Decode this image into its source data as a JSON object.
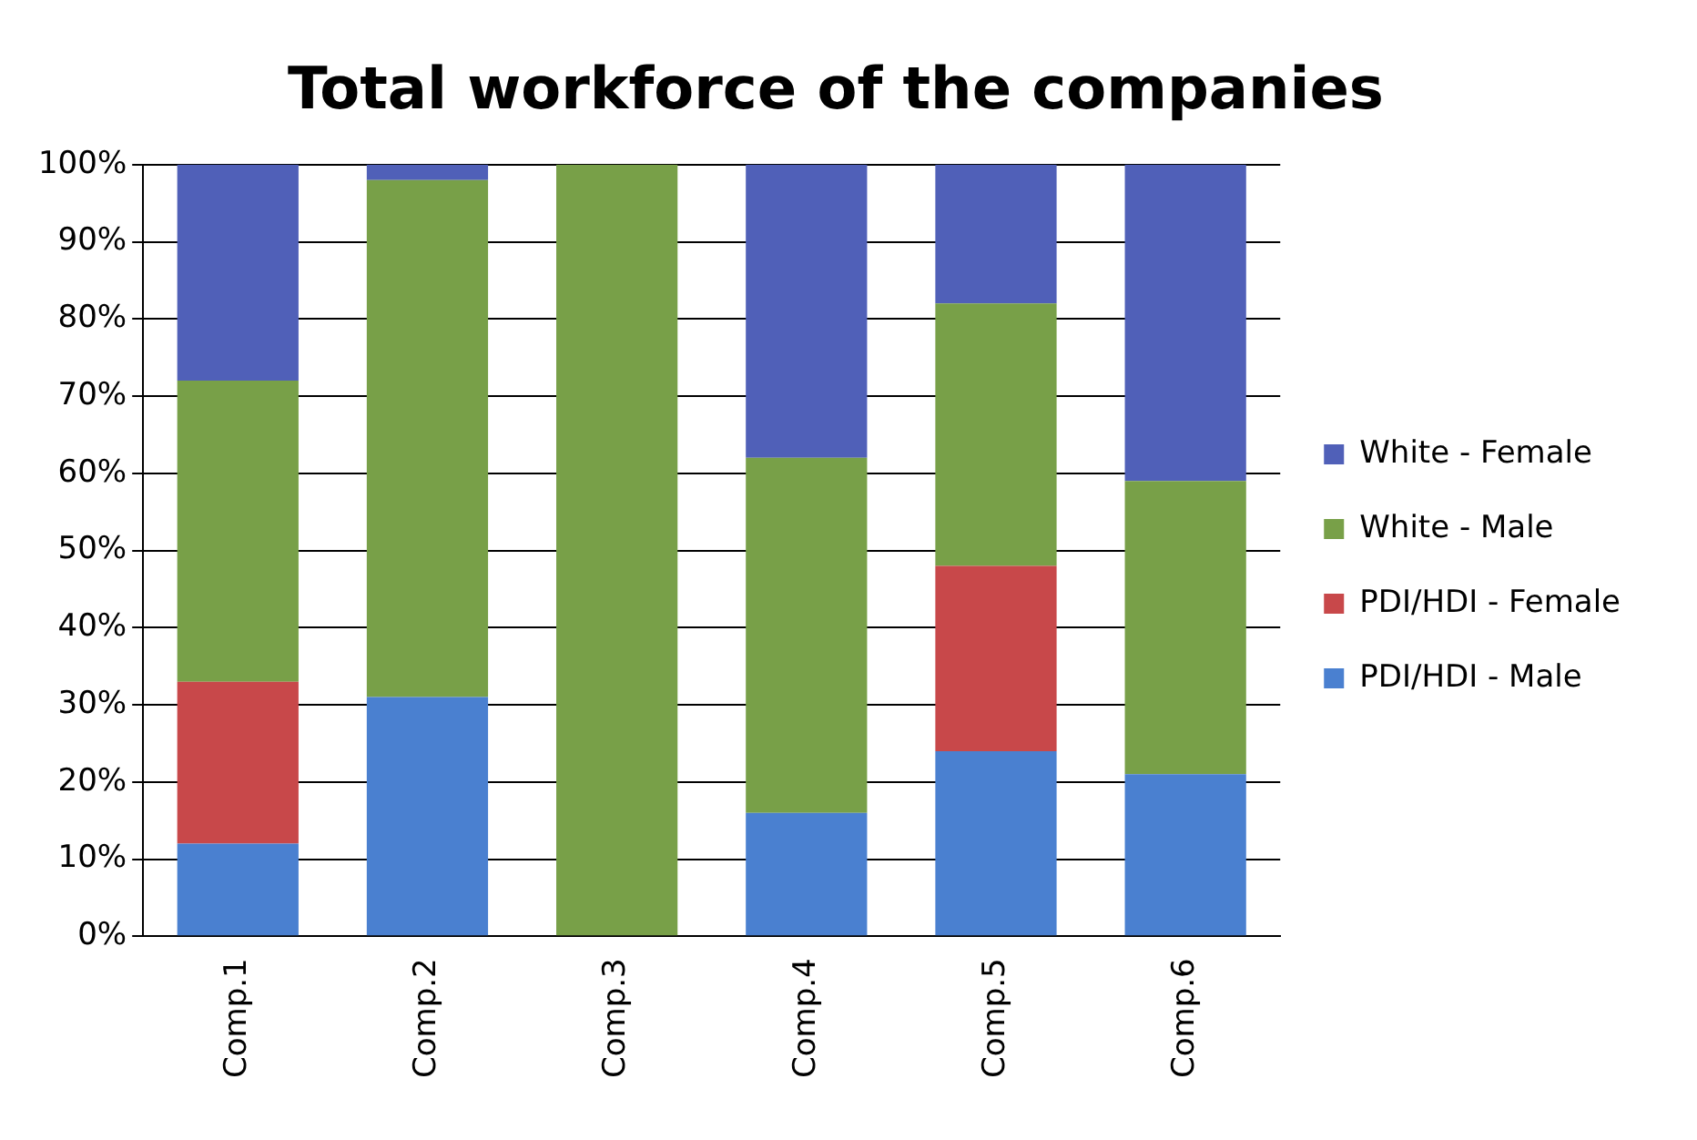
{
  "chart_data": {
    "type": "bar",
    "title": "Total workforce of the companies",
    "categories": [
      "Comp.1",
      "Comp.2",
      "Comp.3",
      "Comp.4",
      "Comp.5",
      "Comp.6"
    ],
    "series": [
      {
        "name": "PDI/HDI - Male",
        "color": "#4a80d0",
        "values": [
          12,
          31,
          0,
          16,
          24,
          21
        ]
      },
      {
        "name": "PDI/HDI - Female",
        "color": "#c8484a",
        "values": [
          21,
          0,
          0,
          0,
          24,
          0
        ]
      },
      {
        "name": "White - Male",
        "color": "#78a048",
        "values": [
          39,
          67,
          100,
          46,
          34,
          38
        ]
      },
      {
        "name": "White - Female",
        "color": "#5060b8",
        "values": [
          28,
          2,
          0,
          38,
          18,
          41
        ]
      }
    ],
    "stacked": true,
    "ylim": [
      0,
      100
    ],
    "yticks": [
      {
        "value": 0,
        "label": "0%"
      },
      {
        "value": 10,
        "label": "10%"
      },
      {
        "value": 20,
        "label": "20%"
      },
      {
        "value": 30,
        "label": "30%"
      },
      {
        "value": 40,
        "label": "40%"
      },
      {
        "value": 50,
        "label": "50%"
      },
      {
        "value": 60,
        "label": "60%"
      },
      {
        "value": 70,
        "label": "70%"
      },
      {
        "value": 80,
        "label": "80%"
      },
      {
        "value": 90,
        "label": "90%"
      },
      {
        "value": 100,
        "label": "100%"
      }
    ],
    "grid": "y",
    "legend": "right"
  }
}
